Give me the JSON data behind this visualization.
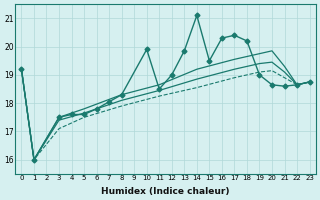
{
  "xlabel": "Humidex (Indice chaleur)",
  "background_color": "#d6f0f0",
  "line_color": "#1a7a6e",
  "grid_color": "#b0d8d8",
  "xlim": [
    -0.5,
    23.5
  ],
  "ylim": [
    15.5,
    21.5
  ],
  "yticks": [
    16,
    17,
    18,
    19,
    20,
    21
  ],
  "xticks": [
    0,
    1,
    2,
    3,
    4,
    5,
    6,
    7,
    8,
    9,
    10,
    11,
    12,
    13,
    14,
    15,
    16,
    17,
    18,
    19,
    20,
    21,
    22,
    23
  ],
  "series": [
    {
      "x": [
        0,
        1,
        3,
        4,
        5,
        6,
        7,
        8,
        10,
        11,
        12,
        13,
        14,
        15,
        16,
        17,
        18,
        19,
        20,
        21,
        22,
        23
      ],
      "y": [
        19.2,
        16.0,
        17.5,
        17.6,
        17.6,
        17.8,
        18.05,
        18.3,
        19.9,
        18.5,
        19.0,
        19.85,
        21.1,
        19.5,
        20.3,
        20.4,
        20.2,
        19.0,
        18.65,
        18.6,
        18.65,
        18.75
      ],
      "style": "solid",
      "marker": "D",
      "markersize": 2.5,
      "linewidth": 1.0,
      "zorder": 3
    },
    {
      "x": [
        0,
        1,
        3,
        5,
        8,
        11,
        14,
        17,
        19,
        20,
        21,
        22,
        23
      ],
      "y": [
        19.2,
        16.0,
        17.5,
        17.8,
        18.3,
        18.65,
        19.2,
        19.55,
        19.75,
        19.85,
        19.3,
        18.65,
        18.75
      ],
      "style": "solid",
      "marker": null,
      "markersize": 0,
      "linewidth": 0.9,
      "zorder": 2
    },
    {
      "x": [
        0,
        1,
        3,
        5,
        8,
        11,
        14,
        17,
        19,
        20,
        21,
        22,
        23
      ],
      "y": [
        19.2,
        16.0,
        17.4,
        17.65,
        18.1,
        18.45,
        18.85,
        19.2,
        19.4,
        19.45,
        19.1,
        18.65,
        18.75
      ],
      "style": "solid",
      "marker": null,
      "markersize": 0,
      "linewidth": 0.9,
      "zorder": 2
    },
    {
      "x": [
        0,
        1,
        3,
        5,
        8,
        11,
        14,
        17,
        19,
        20,
        21,
        22,
        23
      ],
      "y": [
        19.2,
        16.0,
        17.1,
        17.5,
        17.9,
        18.25,
        18.55,
        18.9,
        19.1,
        19.15,
        18.9,
        18.65,
        18.75
      ],
      "style": "dashed",
      "marker": null,
      "markersize": 0,
      "linewidth": 0.8,
      "zorder": 2
    }
  ]
}
